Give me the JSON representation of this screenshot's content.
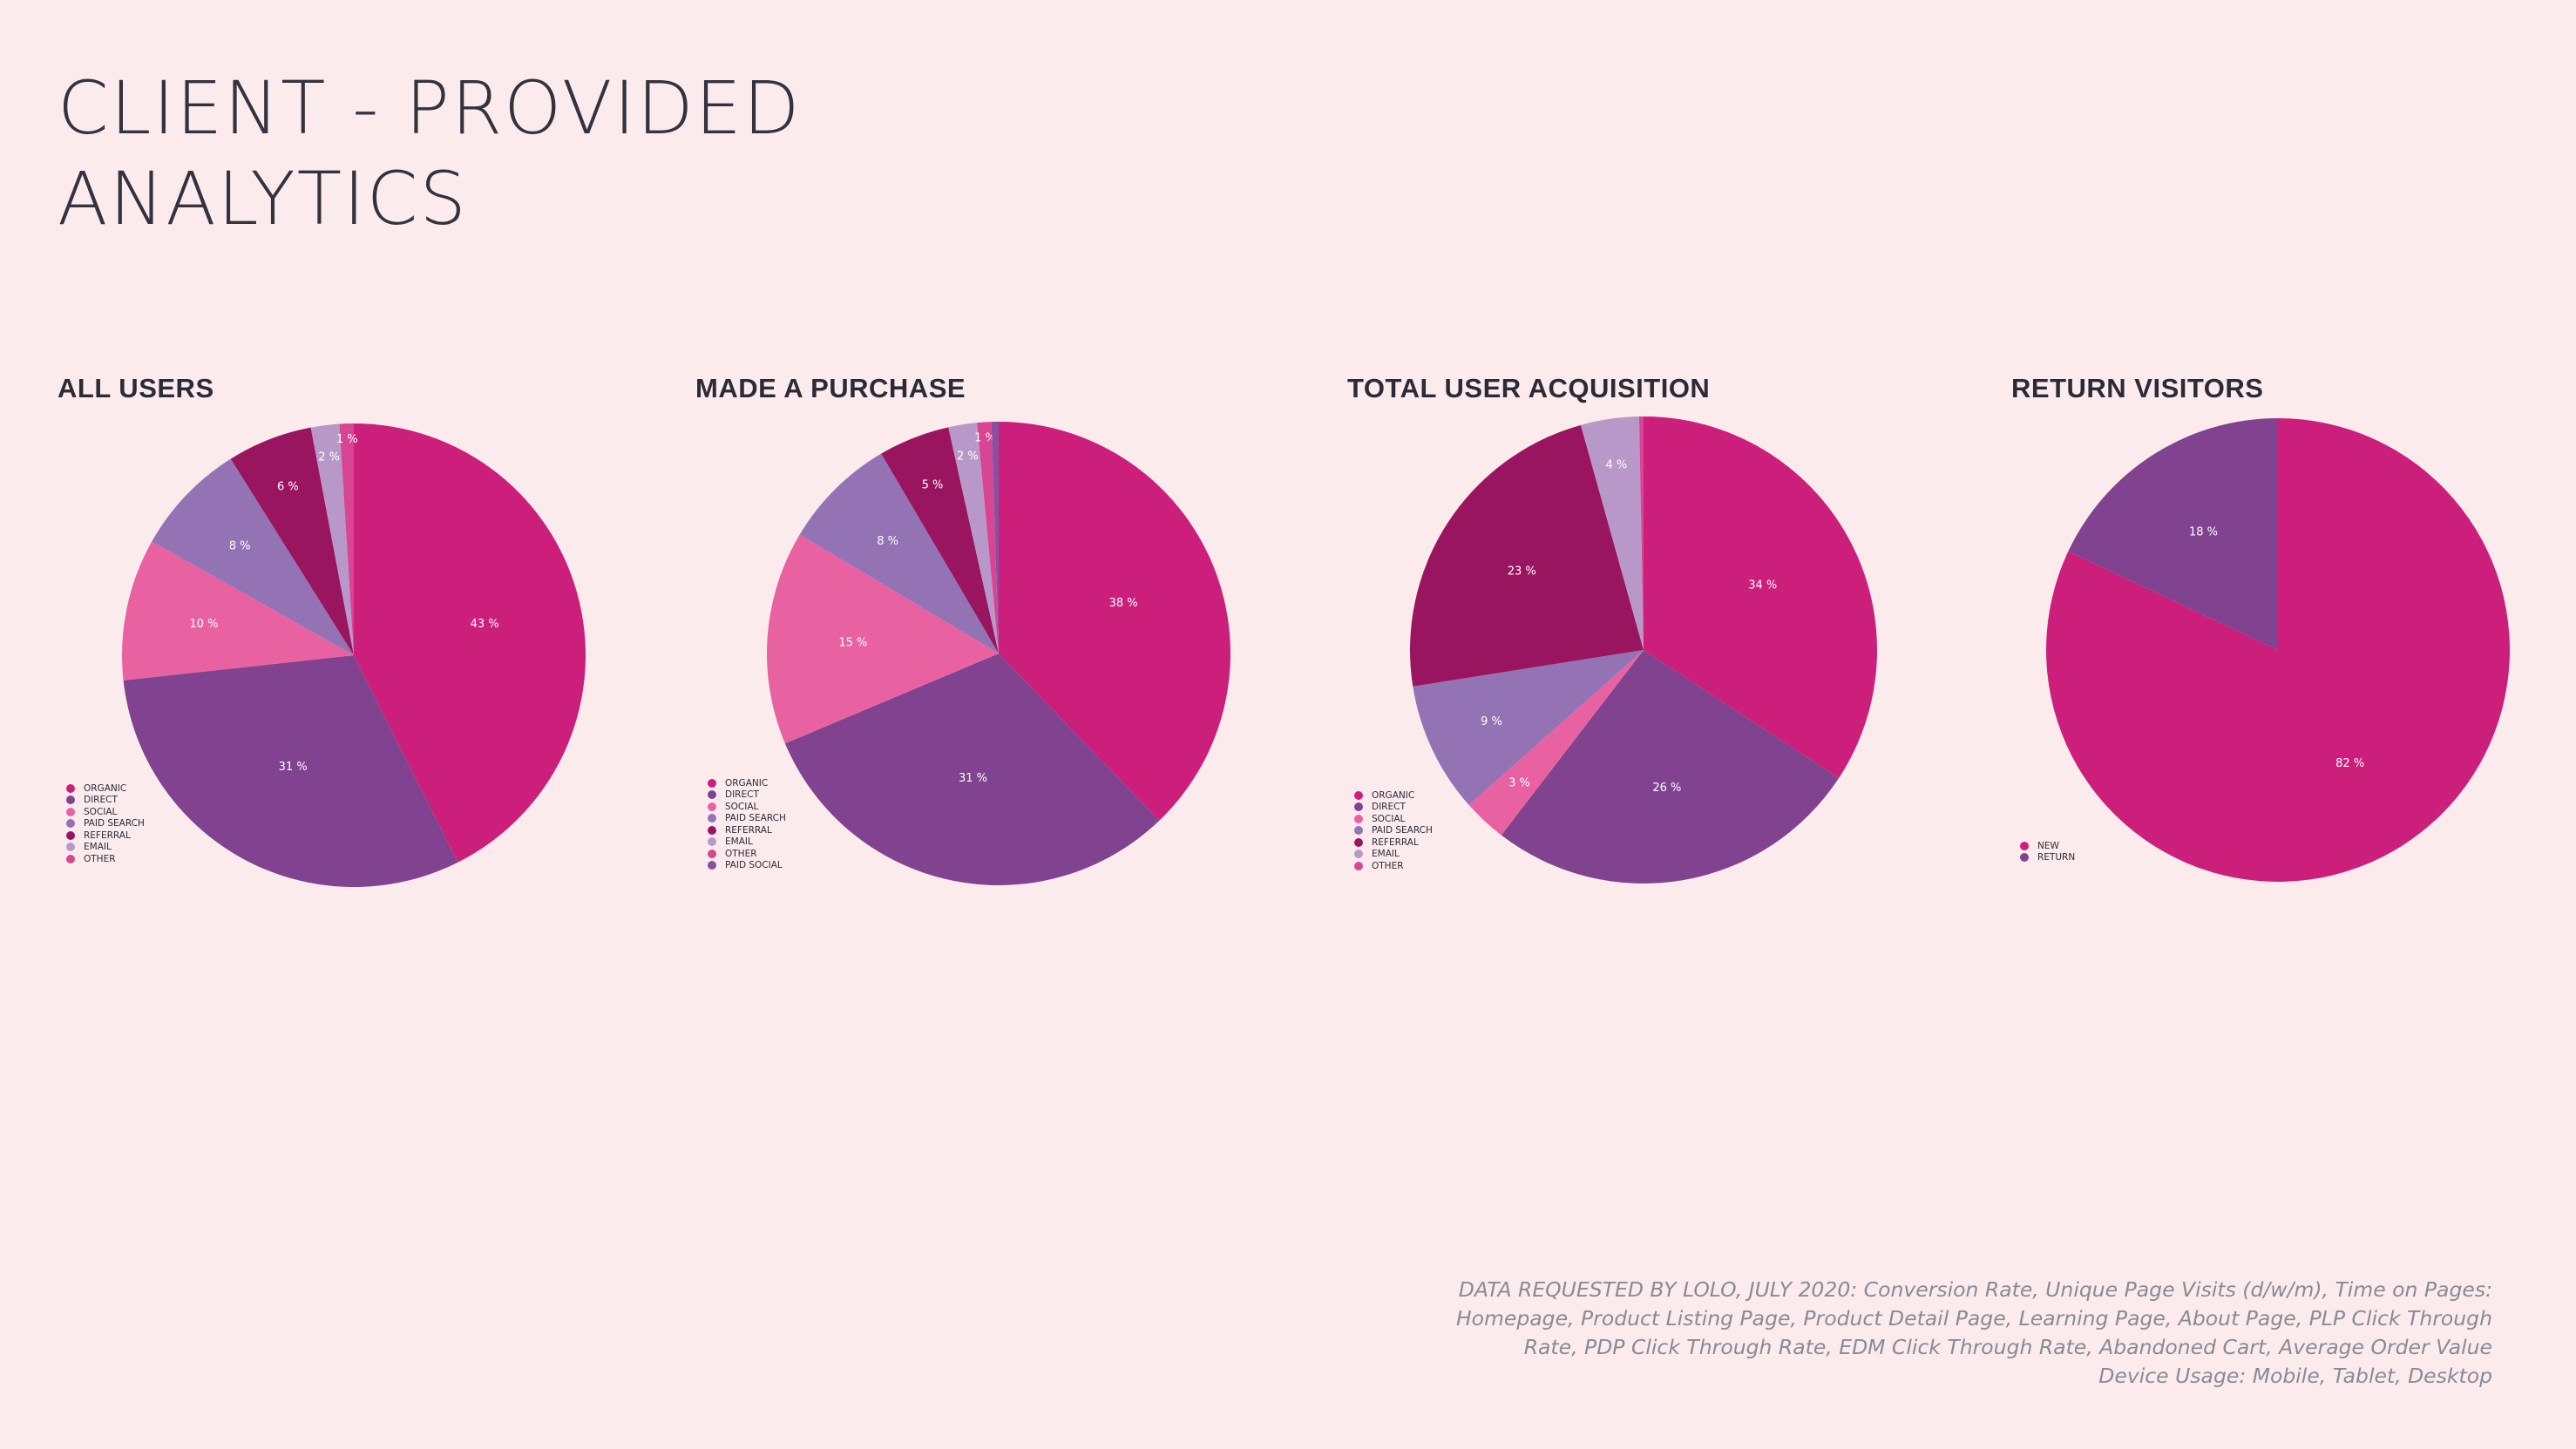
{
  "page": {
    "title_line1": "CLIENT - PROVIDED",
    "title_line2": "ANALYTICS"
  },
  "footnote": {
    "line1": "DATA REQUESTED BY LOLO, JULY 2020: Conversion Rate, Unique Page Visits (d/w/m), Time on Pages:",
    "line2": "Homepage, Product Listing Page, Product Detail Page, Learning Page, About Page, PLP Click Through",
    "line3": "Rate, PDP Click Through Rate, EDM Click Through Rate, Abandoned Cart, Average Order Value",
    "line4": "Device Usage: Mobile, Tablet, Desktop"
  },
  "chart_data": [
    {
      "type": "pie",
      "title": "ALL USERS",
      "categories": [
        "ORGANIC",
        "DIRECT",
        "SOCIAL",
        "PAID SEARCH",
        "REFERRAL",
        "EMAIL",
        "OTHER"
      ],
      "values": [
        43,
        31,
        10,
        8,
        6,
        2,
        1
      ],
      "slice_labels": [
        "43 %",
        "31 %",
        "10 %",
        "8 %",
        "6 %",
        "2 %",
        "1 %"
      ],
      "colors": [
        "#cc1f7b",
        "#814390",
        "#e862a2",
        "#9473b5",
        "#9a1560",
        "#b898c8",
        "#d84593"
      ],
      "legend": "bottom-left"
    },
    {
      "type": "pie",
      "title": "MADE A PURCHASE",
      "categories": [
        "ORGANIC",
        "DIRECT",
        "SOCIAL",
        "PAID SEARCH",
        "REFERRAL",
        "EMAIL",
        "OTHER",
        "PAID SOCIAL"
      ],
      "values": [
        38,
        31,
        15,
        8,
        5,
        2,
        1,
        0.5
      ],
      "slice_labels": [
        "38 %",
        "31 %",
        "15 %",
        "8 %",
        "5 %",
        "2 %",
        "1 %",
        ""
      ],
      "colors": [
        "#cc1f7b",
        "#814390",
        "#e862a2",
        "#9473b5",
        "#9a1560",
        "#b898c8",
        "#d84593",
        "#8a50a0"
      ],
      "legend": "bottom-left"
    },
    {
      "type": "pie",
      "title": "TOTAL USER ACQUISITION",
      "categories": [
        "ORGANIC",
        "DIRECT",
        "SOCIAL",
        "PAID SEARCH",
        "REFERRAL",
        "EMAIL",
        "OTHER"
      ],
      "values": [
        34,
        26,
        3,
        9,
        23,
        4,
        0.3
      ],
      "slice_labels": [
        "34 %",
        "26 %",
        "3 %",
        "9 %",
        "23 %",
        "4 %",
        ""
      ],
      "colors": [
        "#cc1f7b",
        "#814390",
        "#e862a2",
        "#9473b5",
        "#9a1560",
        "#b898c8",
        "#d84593"
      ],
      "legend": "bottom-left"
    },
    {
      "type": "pie",
      "title": "RETURN VISITORS",
      "categories": [
        "NEW",
        "RETURN"
      ],
      "values": [
        82,
        18
      ],
      "slice_labels": [
        "82 %",
        "18 %"
      ],
      "colors": [
        "#cc1f7b",
        "#814390"
      ],
      "legend": "bottom-left"
    }
  ]
}
